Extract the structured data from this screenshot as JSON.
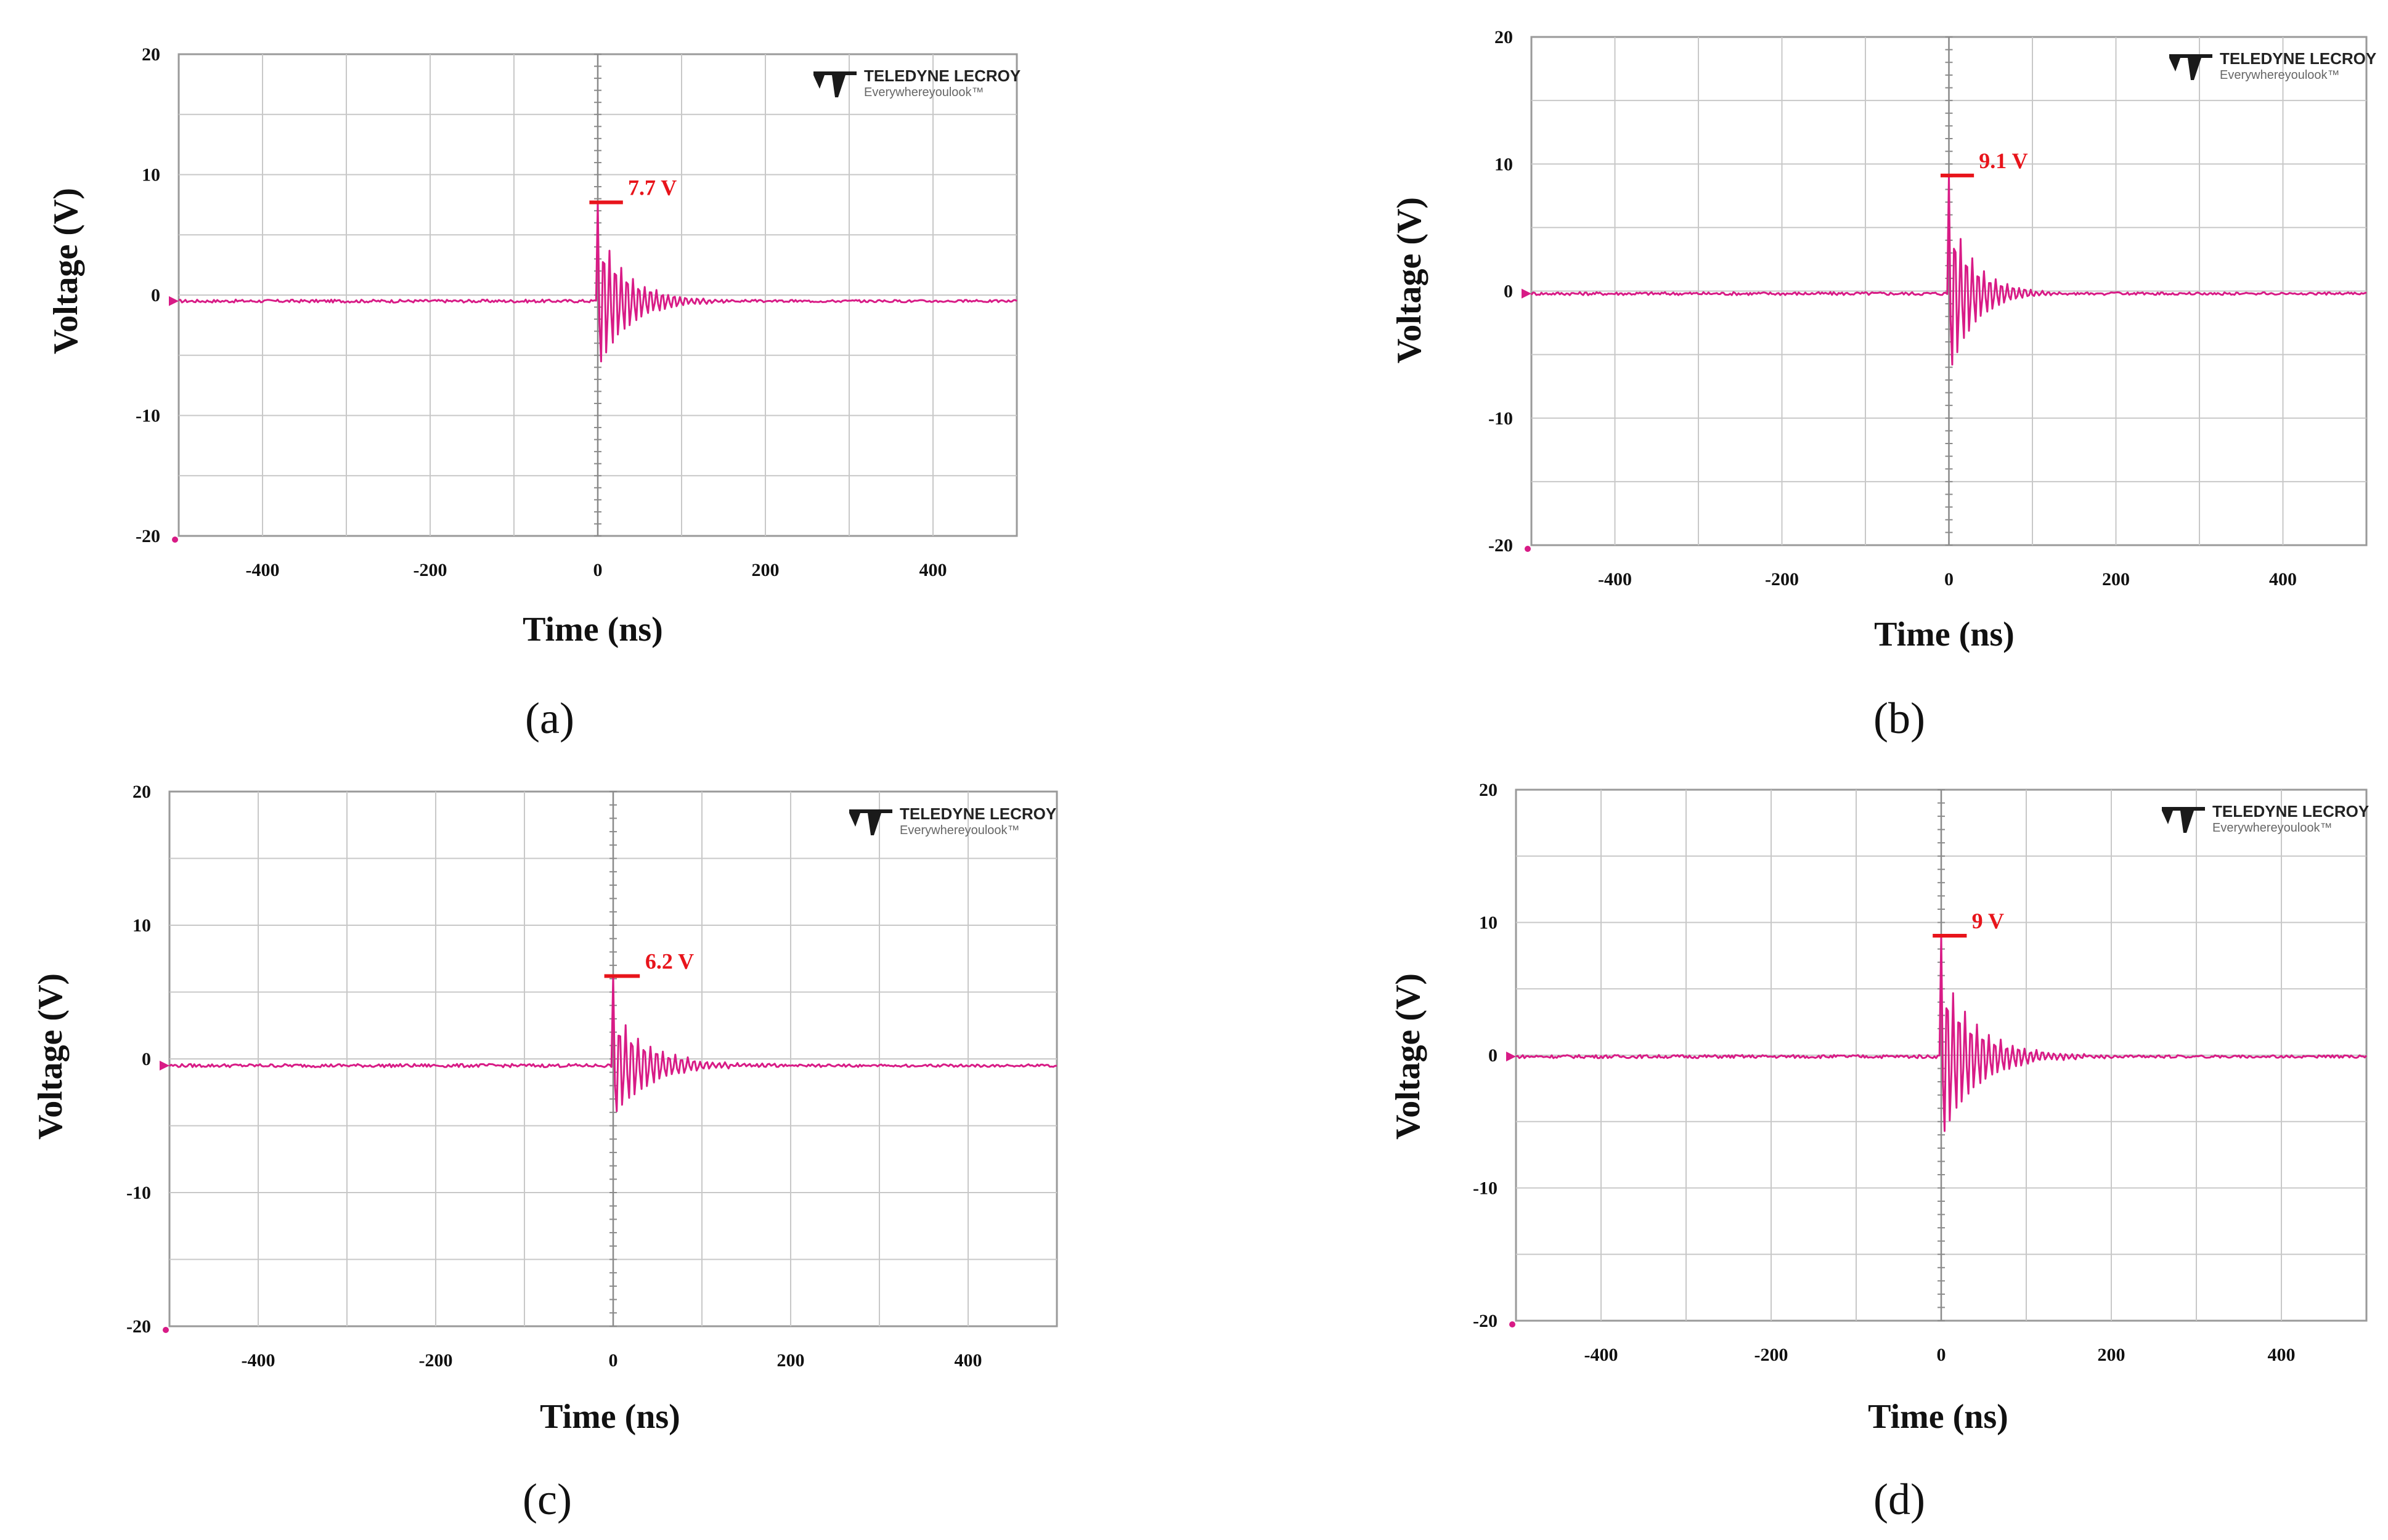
{
  "figure": {
    "panels": [
      {
        "panel_label": "(a)",
        "logo_text": "TELEDYNE LECROY",
        "logo_tagline": "Everywhereyoulook™"
      },
      {
        "panel_label": "(b)",
        "logo_text": "TELEDYNE LECROY",
        "logo_tagline": "Everywhereyoulook™"
      },
      {
        "panel_label": "(c)",
        "logo_text": "TELEDYNE LECROY",
        "logo_tagline": "Everywhereyoulook™"
      },
      {
        "panel_label": "(d)",
        "logo_text": "TELEDYNE LECROY",
        "logo_tagline": "Everywhereyoulook™"
      }
    ]
  },
  "colors": {
    "trace": "#d81b86",
    "peak_marker": "#e8141b",
    "grid": "#c8c8c8",
    "frame": "#9a9a9a"
  },
  "chart_data": [
    {
      "type": "line",
      "title": "",
      "xlabel": "Time (ns)",
      "ylabel": "Voltage (V)",
      "xlim": [
        -500,
        500
      ],
      "ylim": [
        -20,
        20
      ],
      "xticks": [
        -400,
        -200,
        0,
        200,
        400
      ],
      "yticks": [
        20,
        10,
        0,
        -10,
        -20
      ],
      "peak_annotation": {
        "x": 0,
        "value": 7.7,
        "label": "7.7 V"
      },
      "series": [
        {
          "name": "voltage",
          "baseline": -0.5,
          "first_peak": 7.7,
          "first_trough": -4.8,
          "ring_period_ns": 7,
          "decay_ns": 35
        }
      ]
    },
    {
      "type": "line",
      "title": "",
      "xlabel": "Time (ns)",
      "ylabel": "Voltage (V)",
      "xlim": [
        -500,
        500
      ],
      "ylim": [
        -20,
        20
      ],
      "xticks": [
        -400,
        -200,
        0,
        200,
        400
      ],
      "yticks": [
        20,
        10,
        0,
        -10,
        -20
      ],
      "peak_annotation": {
        "x": 0,
        "value": 9.1,
        "label": "9.1 V"
      },
      "series": [
        {
          "name": "voltage",
          "baseline": -0.2,
          "first_peak": 9.1,
          "first_trough": -4.9,
          "ring_period_ns": 7,
          "decay_ns": 30
        }
      ]
    },
    {
      "type": "line",
      "title": "",
      "xlabel": "Time (ns)",
      "ylabel": "Voltage (V)",
      "xlim": [
        -500,
        500
      ],
      "ylim": [
        -20,
        20
      ],
      "xticks": [
        -400,
        -200,
        0,
        200,
        400
      ],
      "yticks": [
        20,
        10,
        0,
        -10,
        -20
      ],
      "peak_annotation": {
        "x": 0,
        "value": 6.2,
        "label": "6.2 V"
      },
      "series": [
        {
          "name": "voltage",
          "baseline": -0.5,
          "first_peak": 6.2,
          "first_trough": -2.3,
          "ring_period_ns": 7,
          "decay_ns": 40
        }
      ]
    },
    {
      "type": "line",
      "title": "",
      "xlabel": "Time (ns)",
      "ylabel": "Voltage (V)",
      "xlim": [
        -500,
        500
      ],
      "ylim": [
        -20,
        20
      ],
      "xticks": [
        -400,
        -200,
        0,
        200,
        400
      ],
      "yticks": [
        20,
        10,
        0,
        -10,
        -20
      ],
      "peak_annotation": {
        "x": 0,
        "value": 9.0,
        "label": "9 V"
      },
      "series": [
        {
          "name": "voltage",
          "baseline": -0.1,
          "first_peak": 9.0,
          "first_trough": -4.7,
          "ring_period_ns": 7,
          "decay_ns": 40
        }
      ]
    }
  ]
}
